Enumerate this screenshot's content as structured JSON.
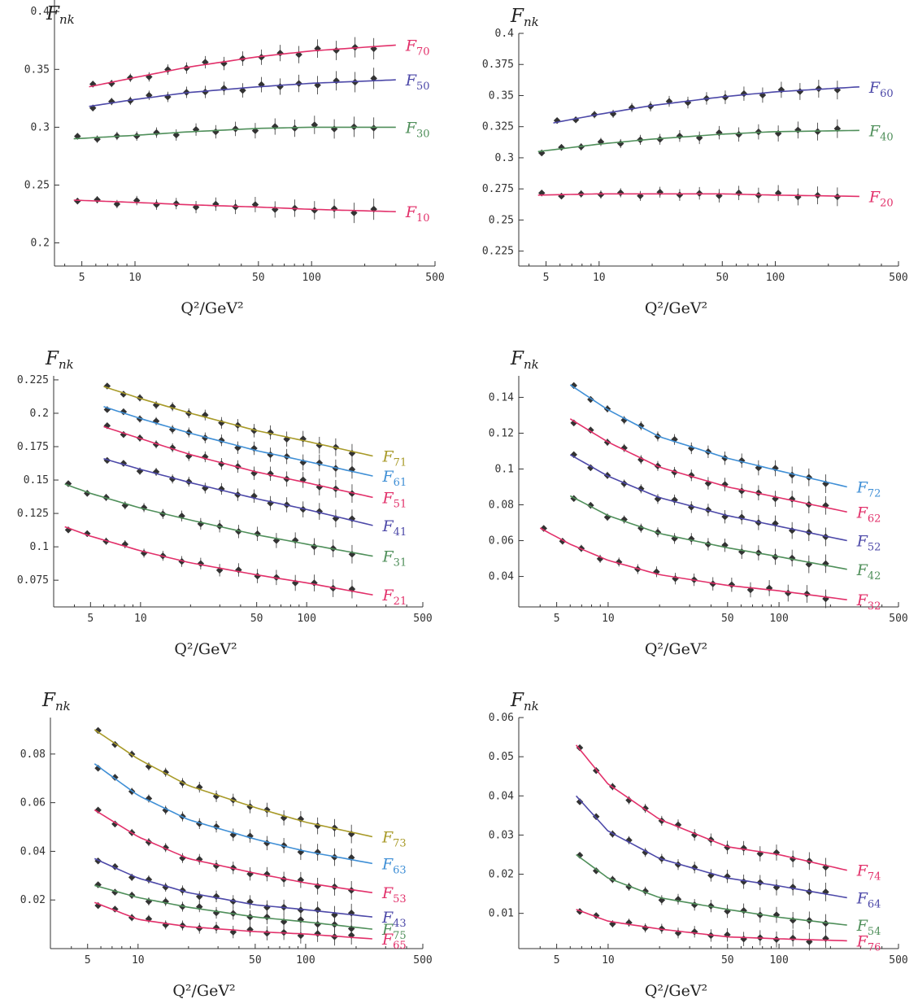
{
  "colors": {
    "red": "#e2306a",
    "blue": "#4c48a8",
    "green": "#4f8f5a",
    "yellow": "#a89a28",
    "lightblue": "#3f8fd6",
    "axis": "#333333",
    "points": "#333333"
  },
  "x_label": "Q²/GeV²",
  "chart_data": [
    {
      "type": "line",
      "ylabel": "F_nk",
      "xlabel": "Q²/GeV²",
      "xscale": "log",
      "xlim": [
        3.5,
        500
      ],
      "ylim": [
        0.18,
        0.41
      ],
      "xticks": [
        5,
        10,
        50,
        100,
        500
      ],
      "yticks": [
        0.2,
        0.25,
        0.3,
        0.35,
        0.4
      ],
      "ytick_labels": [
        "0.2",
        "0.25",
        "0.3",
        "0.35",
        "0.4"
      ],
      "series": [
        {
          "name": "F70",
          "color": "red",
          "x": [
            5.5,
            10,
            20,
            50,
            100,
            300
          ],
          "y": [
            0.335,
            0.343,
            0.352,
            0.361,
            0.366,
            0.371
          ]
        },
        {
          "name": "F50",
          "color": "blue",
          "x": [
            5.5,
            10,
            20,
            50,
            100,
            300
          ],
          "y": [
            0.318,
            0.324,
            0.33,
            0.335,
            0.338,
            0.341
          ]
        },
        {
          "name": "F30",
          "color": "green",
          "x": [
            4.5,
            10,
            20,
            50,
            100,
            300
          ],
          "y": [
            0.29,
            0.293,
            0.296,
            0.299,
            0.3,
            0.3
          ]
        },
        {
          "name": "F10",
          "color": "red",
          "x": [
            4.5,
            10,
            20,
            50,
            100,
            300
          ],
          "y": [
            0.237,
            0.235,
            0.233,
            0.231,
            0.229,
            0.227
          ]
        }
      ]
    },
    {
      "type": "line",
      "ylabel": "F_nk",
      "xlabel": "Q²/GeV²",
      "xscale": "log",
      "xlim": [
        3.5,
        500
      ],
      "ylim": [
        0.213,
        0.4
      ],
      "xticks": [
        5,
        10,
        50,
        100,
        500
      ],
      "yticks": [
        0.225,
        0.25,
        0.275,
        0.3,
        0.325,
        0.35,
        0.375,
        0.4
      ],
      "ytick_labels": [
        "0.225",
        "0.25",
        "0.275",
        "0.3",
        "0.325",
        "0.35",
        "0.375",
        "0.4"
      ],
      "series": [
        {
          "name": "F60",
          "color": "blue",
          "x": [
            5.5,
            10,
            20,
            50,
            100,
            300
          ],
          "y": [
            0.328,
            0.335,
            0.342,
            0.349,
            0.353,
            0.357
          ]
        },
        {
          "name": "F40",
          "color": "green",
          "x": [
            4.5,
            10,
            20,
            50,
            100,
            300
          ],
          "y": [
            0.305,
            0.311,
            0.315,
            0.319,
            0.321,
            0.322
          ]
        },
        {
          "name": "F20",
          "color": "red",
          "x": [
            4.5,
            10,
            20,
            50,
            100,
            300
          ],
          "y": [
            0.27,
            0.271,
            0.271,
            0.271,
            0.27,
            0.269
          ]
        }
      ]
    },
    {
      "type": "line",
      "ylabel": "F_nk",
      "xlabel": "Q²/GeV²",
      "xscale": "log",
      "xlim": [
        3,
        500
      ],
      "ylim": [
        0.055,
        0.228
      ],
      "xticks": [
        5,
        10,
        50,
        100,
        500
      ],
      "yticks": [
        0.075,
        0.1,
        0.125,
        0.15,
        0.175,
        0.2,
        0.225
      ],
      "ytick_labels": [
        "0.075",
        "0.1",
        "0.125",
        "0.15",
        "0.175",
        "0.2",
        "0.225"
      ],
      "series": [
        {
          "name": "F71",
          "color": "yellow",
          "x": [
            6,
            10,
            20,
            50,
            100,
            250
          ],
          "y": [
            0.22,
            0.211,
            0.2,
            0.187,
            0.179,
            0.168
          ]
        },
        {
          "name": "F61",
          "color": "lightblue",
          "x": [
            6,
            10,
            20,
            50,
            100,
            250
          ],
          "y": [
            0.205,
            0.196,
            0.185,
            0.172,
            0.164,
            0.153
          ]
        },
        {
          "name": "F51",
          "color": "red",
          "x": [
            6,
            10,
            20,
            50,
            100,
            250
          ],
          "y": [
            0.19,
            0.181,
            0.169,
            0.156,
            0.148,
            0.137
          ]
        },
        {
          "name": "F41",
          "color": "blue",
          "x": [
            6,
            10,
            20,
            50,
            100,
            250
          ],
          "y": [
            0.166,
            0.158,
            0.148,
            0.136,
            0.128,
            0.116
          ]
        },
        {
          "name": "F31",
          "color": "green",
          "x": [
            3.5,
            5,
            10,
            20,
            50,
            100,
            250
          ],
          "y": [
            0.147,
            0.14,
            0.129,
            0.12,
            0.109,
            0.102,
            0.093
          ]
        },
        {
          "name": "F21",
          "color": "red",
          "x": [
            3.5,
            5,
            10,
            20,
            50,
            100,
            250
          ],
          "y": [
            0.115,
            0.108,
            0.097,
            0.088,
            0.079,
            0.073,
            0.064
          ]
        }
      ]
    },
    {
      "type": "line",
      "ylabel": "F_nk",
      "xlabel": "Q²/GeV²",
      "xscale": "log",
      "xlim": [
        3,
        500
      ],
      "ylim": [
        0.023,
        0.152
      ],
      "xticks": [
        5,
        10,
        50,
        100,
        500
      ],
      "yticks": [
        0.04,
        0.06,
        0.08,
        0.1,
        0.12,
        0.14
      ],
      "ytick_labels": [
        "0.04",
        "0.06",
        "0.08",
        "0.1",
        "0.12",
        "0.14"
      ],
      "series": [
        {
          "name": "F72",
          "color": "lightblue",
          "x": [
            6,
            10,
            20,
            50,
            100,
            250
          ],
          "y": [
            0.147,
            0.133,
            0.118,
            0.106,
            0.099,
            0.09
          ]
        },
        {
          "name": "F62",
          "color": "red",
          "x": [
            6,
            10,
            20,
            50,
            100,
            250
          ],
          "y": [
            0.128,
            0.115,
            0.101,
            0.09,
            0.084,
            0.076
          ]
        },
        {
          "name": "F52",
          "color": "blue",
          "x": [
            6,
            10,
            20,
            50,
            100,
            250
          ],
          "y": [
            0.108,
            0.096,
            0.084,
            0.074,
            0.068,
            0.06
          ]
        },
        {
          "name": "F42",
          "color": "green",
          "x": [
            6,
            10,
            20,
            50,
            100,
            250
          ],
          "y": [
            0.085,
            0.074,
            0.064,
            0.056,
            0.051,
            0.044
          ]
        },
        {
          "name": "F32",
          "color": "red",
          "x": [
            4,
            6,
            10,
            20,
            50,
            100,
            250
          ],
          "y": [
            0.067,
            0.058,
            0.049,
            0.041,
            0.035,
            0.032,
            0.027
          ]
        }
      ]
    },
    {
      "type": "line",
      "ylabel": "F_nk",
      "xlabel": "Q²/GeV²",
      "xscale": "log",
      "xlim": [
        3,
        500
      ],
      "ylim": [
        0,
        0.095
      ],
      "xticks": [
        5,
        10,
        50,
        100,
        500
      ],
      "yticks": [
        0.02,
        0.04,
        0.06,
        0.08
      ],
      "ytick_labels": [
        "0.02",
        "0.04",
        "0.06",
        "0.08"
      ],
      "series": [
        {
          "name": "F73",
          "color": "yellow",
          "x": [
            5.5,
            10,
            20,
            50,
            100,
            250
          ],
          "y": [
            0.09,
            0.078,
            0.067,
            0.058,
            0.052,
            0.046
          ]
        },
        {
          "name": "F63",
          "color": "lightblue",
          "x": [
            5.5,
            10,
            20,
            50,
            100,
            250
          ],
          "y": [
            0.076,
            0.063,
            0.053,
            0.045,
            0.04,
            0.035
          ]
        },
        {
          "name": "F53",
          "color": "red",
          "x": [
            5.5,
            10,
            20,
            50,
            100,
            250
          ],
          "y": [
            0.057,
            0.046,
            0.037,
            0.031,
            0.027,
            0.023
          ]
        },
        {
          "name": "F43",
          "color": "blue",
          "x": [
            5.5,
            10,
            20,
            50,
            100,
            250
          ],
          "y": [
            0.037,
            0.029,
            0.023,
            0.018,
            0.016,
            0.013
          ]
        },
        {
          "name": "F75",
          "color": "green",
          "x": [
            5.5,
            10,
            20,
            50,
            100,
            250
          ],
          "y": [
            0.026,
            0.021,
            0.017,
            0.013,
            0.011,
            0.008
          ]
        },
        {
          "name": "F65",
          "color": "red",
          "x": [
            5.5,
            10,
            20,
            50,
            100,
            250
          ],
          "y": [
            0.019,
            0.012,
            0.009,
            0.007,
            0.006,
            0.004
          ]
        }
      ]
    },
    {
      "type": "line",
      "ylabel": "F_nk",
      "xlabel": "Q²/GeV²",
      "xscale": "log",
      "xlim": [
        3,
        500
      ],
      "ylim": [
        0.001,
        0.06
      ],
      "xticks": [
        5,
        10,
        50,
        100,
        500
      ],
      "yticks": [
        0.01,
        0.02,
        0.03,
        0.04,
        0.05,
        0.06
      ],
      "ytick_labels": [
        "0.01",
        "0.02",
        "0.03",
        "0.04",
        "0.05",
        "0.06"
      ],
      "series": [
        {
          "name": "F74",
          "color": "red",
          "x": [
            6.5,
            10,
            20,
            50,
            100,
            250
          ],
          "y": [
            0.053,
            0.043,
            0.034,
            0.027,
            0.025,
            0.021
          ]
        },
        {
          "name": "F64",
          "color": "blue",
          "x": [
            6.5,
            10,
            20,
            50,
            100,
            250
          ],
          "y": [
            0.04,
            0.031,
            0.024,
            0.019,
            0.017,
            0.014
          ]
        },
        {
          "name": "F54",
          "color": "green",
          "x": [
            6.5,
            10,
            20,
            50,
            100,
            250
          ],
          "y": [
            0.025,
            0.019,
            0.014,
            0.011,
            0.009,
            0.007
          ]
        },
        {
          "name": "F76",
          "color": "red",
          "x": [
            6.5,
            10,
            20,
            50,
            100,
            250
          ],
          "y": [
            0.011,
            0.008,
            0.006,
            0.004,
            0.0035,
            0.003
          ]
        }
      ]
    }
  ]
}
